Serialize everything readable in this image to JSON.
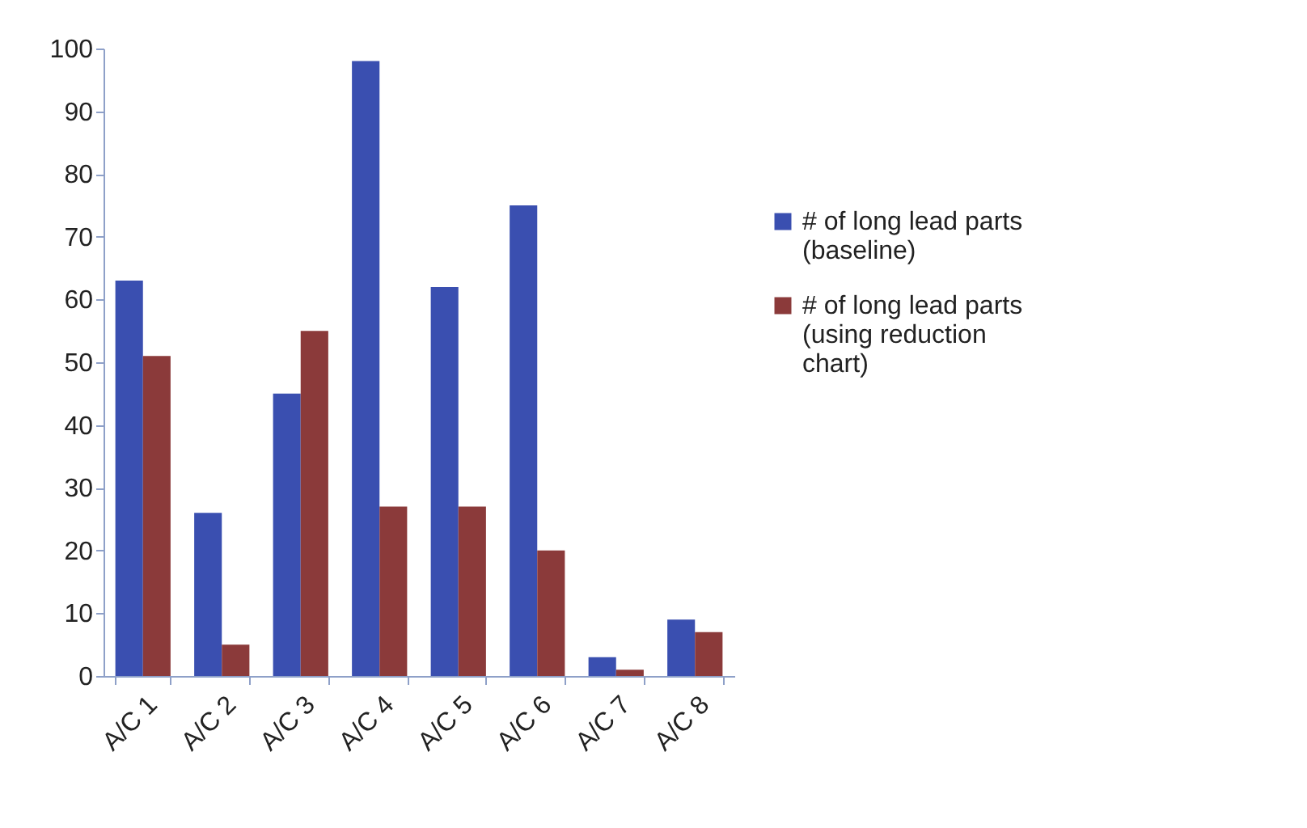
{
  "chart_data": {
    "type": "bar",
    "categories": [
      "A/C 1",
      "A/C 2",
      "A/C 3",
      "A/C 4",
      "A/C 5",
      "A/C 6",
      "A/C 7",
      "A/C 8"
    ],
    "series": [
      {
        "name": "# of long lead parts (baseline)",
        "color": "#3a4fb0",
        "values": [
          63,
          26,
          45,
          98,
          62,
          75,
          3,
          9
        ]
      },
      {
        "name": "# of long lead parts (using reduction chart)",
        "color": "#8b3a3a",
        "values": [
          51,
          5,
          55,
          27,
          27,
          20,
          1,
          7
        ]
      }
    ],
    "ylim": [
      0,
      100
    ],
    "yticks": [
      0,
      10,
      20,
      30,
      40,
      50,
      60,
      70,
      80,
      90,
      100
    ],
    "grid": false,
    "legend": "right"
  }
}
